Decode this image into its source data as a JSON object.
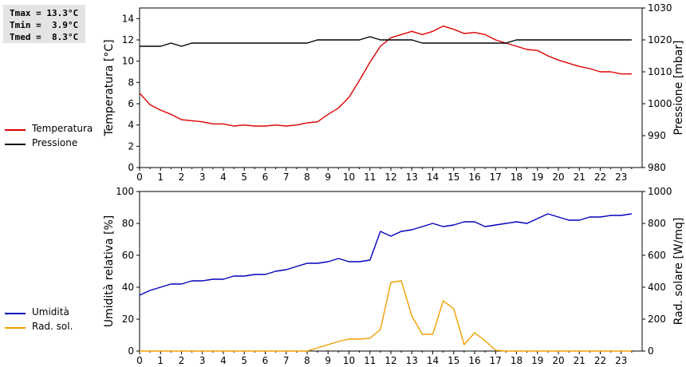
{
  "stats": {
    "tmax": "Tmax = 13.3°C",
    "tmin": "Tmin =  3.9°C",
    "tmed": "Tmed =  8.3°C"
  },
  "colors": {
    "temperature": "#dd0000",
    "pressure": "#000000",
    "humidity": "#0000bb",
    "solar": "#f0a000"
  },
  "chart_data": [
    {
      "type": "line",
      "x_ticks": [
        0,
        1,
        2,
        3,
        4,
        5,
        6,
        7,
        8,
        9,
        10,
        11,
        12,
        13,
        14,
        15,
        16,
        17,
        18,
        19,
        20,
        21,
        22,
        23
      ],
      "x_tick_labels": [
        "0",
        "1",
        "2",
        "3",
        "4",
        "5",
        "6",
        "7",
        "8",
        "9",
        "10",
        "11",
        "12",
        "13",
        "14",
        "15",
        "16",
        "17",
        "18",
        "19",
        "20",
        "21",
        "22",
        "23"
      ],
      "xlim": [
        0,
        24
      ],
      "ylabel_left": "Temperatura [°C]",
      "ylim_left": [
        0,
        15
      ],
      "yticks_left": [
        0,
        2,
        4,
        6,
        8,
        10,
        12,
        14
      ],
      "ytick_labels_left": [
        "0",
        "2",
        "4",
        "6",
        "8",
        "10",
        "12",
        "14"
      ],
      "ylabel_right": "Pressione [mbar]",
      "ylim_right": [
        980,
        1030
      ],
      "yticks_right": [
        980,
        990,
        1000,
        1010,
        1020,
        1030
      ],
      "ytick_labels_right": [
        "980",
        "990",
        "1000",
        "1010",
        "1020",
        "1030"
      ],
      "legend": [
        "Temperatura",
        "Pressione"
      ],
      "series": [
        {
          "name": "Temperatura",
          "axis": "left",
          "x": [
            0,
            0.5,
            1,
            1.5,
            2,
            2.5,
            3,
            3.5,
            4,
            4.5,
            5,
            5.5,
            6,
            6.5,
            7,
            7.5,
            8,
            8.5,
            9,
            9.5,
            10,
            10.5,
            11,
            11.5,
            12,
            12.5,
            13,
            13.5,
            14,
            14.5,
            15,
            15.5,
            16,
            16.5,
            17,
            17.5,
            18,
            18.5,
            19,
            19.5,
            20,
            20.5,
            21,
            21.5,
            22,
            22.5,
            23,
            23.5
          ],
          "values": [
            7.0,
            5.9,
            5.4,
            5.0,
            4.5,
            4.4,
            4.3,
            4.1,
            4.1,
            3.9,
            4.0,
            3.9,
            3.9,
            4.0,
            3.9,
            4.0,
            4.2,
            4.3,
            5.0,
            5.6,
            6.6,
            8.2,
            9.9,
            11.4,
            12.2,
            12.5,
            12.8,
            12.5,
            12.8,
            13.3,
            13.0,
            12.6,
            12.7,
            12.5,
            12.0,
            11.7,
            11.4,
            11.1,
            11.0,
            10.5,
            10.1,
            9.8,
            9.5,
            9.3,
            9.0,
            9.0,
            8.8,
            8.8
          ]
        },
        {
          "name": "Pressione",
          "axis": "right",
          "x": [
            0,
            0.5,
            1,
            1.5,
            2,
            2.5,
            3,
            3.5,
            4,
            4.5,
            5,
            5.5,
            6,
            6.5,
            7,
            7.5,
            8,
            8.5,
            9,
            9.5,
            10,
            10.5,
            11,
            11.5,
            12,
            12.5,
            13,
            13.5,
            14,
            14.5,
            15,
            15.5,
            16,
            16.5,
            17,
            17.5,
            18,
            18.5,
            19,
            19.5,
            20,
            20.5,
            21,
            21.5,
            22,
            22.5,
            23,
            23.5
          ],
          "values": [
            1018,
            1018,
            1018,
            1019,
            1018,
            1019,
            1019,
            1019,
            1019,
            1019,
            1019,
            1019,
            1019,
            1019,
            1019,
            1019,
            1019,
            1020,
            1020,
            1020,
            1020,
            1020,
            1021,
            1020,
            1020,
            1020,
            1020,
            1019,
            1019,
            1019,
            1019,
            1019,
            1019,
            1019,
            1019,
            1019,
            1020,
            1020,
            1020,
            1020,
            1020,
            1020,
            1020,
            1020,
            1020,
            1020,
            1020,
            1020
          ]
        }
      ]
    },
    {
      "type": "line",
      "x_ticks": [
        0,
        1,
        2,
        3,
        4,
        5,
        6,
        7,
        8,
        9,
        10,
        11,
        12,
        13,
        14,
        15,
        16,
        17,
        18,
        19,
        20,
        21,
        22,
        23
      ],
      "x_tick_labels": [
        "0",
        "1",
        "2",
        "3",
        "4",
        "5",
        "6",
        "7",
        "8",
        "9",
        "10",
        "11",
        "12",
        "13",
        "14",
        "15",
        "16",
        "17",
        "18",
        "19",
        "20",
        "21",
        "22",
        "23"
      ],
      "xlim": [
        0,
        24
      ],
      "ylabel_left": "Umidità relativa [%]",
      "ylim_left": [
        0,
        100
      ],
      "yticks_left": [
        0,
        20,
        40,
        60,
        80,
        100
      ],
      "ytick_labels_left": [
        "0",
        "20",
        "40",
        "60",
        "80",
        "100"
      ],
      "ylabel_right": "Rad. solare [W/mq]",
      "ylim_right": [
        0,
        1000
      ],
      "yticks_right": [
        0,
        200,
        400,
        600,
        800,
        1000
      ],
      "ytick_labels_right": [
        "0",
        "200",
        "400",
        "600",
        "800",
        "1000"
      ],
      "legend": [
        "Umidità",
        "Rad. sol."
      ],
      "series": [
        {
          "name": "Umidità",
          "axis": "left",
          "x": [
            0,
            0.5,
            1,
            1.5,
            2,
            2.5,
            3,
            3.5,
            4,
            4.5,
            5,
            5.5,
            6,
            6.5,
            7,
            7.5,
            8,
            8.5,
            9,
            9.5,
            10,
            10.5,
            11,
            11.5,
            12,
            12.5,
            13,
            13.5,
            14,
            14.5,
            15,
            15.5,
            16,
            16.5,
            17,
            17.5,
            18,
            18.5,
            19,
            19.5,
            20,
            20.5,
            21,
            21.5,
            22,
            22.5,
            23,
            23.5
          ],
          "values": [
            35,
            38,
            40,
            42,
            42,
            44,
            44,
            45,
            45,
            47,
            47,
            48,
            48,
            50,
            51,
            53,
            55,
            55,
            56,
            58,
            56,
            56,
            57,
            75,
            72,
            75,
            76,
            78,
            80,
            78,
            79,
            81,
            81,
            78,
            79,
            80,
            81,
            80,
            83,
            86,
            84,
            82,
            82,
            84,
            84,
            85,
            85,
            86
          ]
        },
        {
          "name": "Rad. sol.",
          "axis": "right",
          "x": [
            0,
            0.5,
            1,
            1.5,
            2,
            2.5,
            3,
            3.5,
            4,
            4.5,
            5,
            5.5,
            6,
            6.5,
            7,
            7.5,
            8,
            8.5,
            9,
            9.5,
            10,
            10.5,
            11,
            11.5,
            12,
            12.5,
            13,
            13.5,
            14,
            14.5,
            15,
            15.5,
            16,
            16.5,
            17,
            17.5,
            18,
            18.5,
            19,
            19.5,
            20,
            20.5,
            21,
            21.5,
            22,
            22.5,
            23,
            23.5
          ],
          "values": [
            0,
            0,
            0,
            0,
            0,
            0,
            0,
            0,
            0,
            0,
            0,
            0,
            0,
            0,
            0,
            0,
            0,
            20,
            40,
            60,
            75,
            75,
            80,
            135,
            430,
            440,
            220,
            105,
            105,
            315,
            265,
            40,
            115,
            65,
            5,
            0,
            0,
            0,
            0,
            0,
            0,
            0,
            0,
            0,
            0,
            0,
            0,
            0
          ]
        }
      ]
    }
  ]
}
